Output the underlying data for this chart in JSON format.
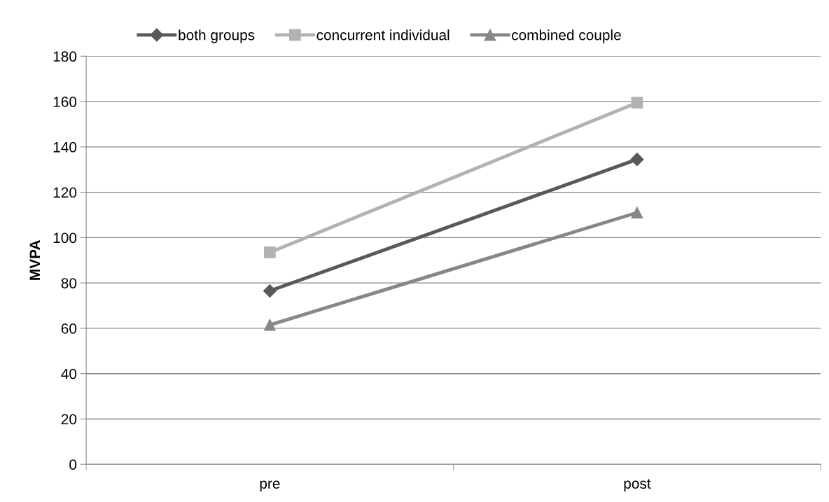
{
  "chart_data": {
    "type": "line",
    "ylabel": "MVPA",
    "categories": [
      "pre",
      "post"
    ],
    "series": [
      {
        "name": "both groups",
        "color": "#595959",
        "values": [
          76.5,
          134.5
        ],
        "marker": "diamond"
      },
      {
        "name": "concurrent individual",
        "color": "#b2b2b2",
        "values": [
          93.5,
          159.5
        ],
        "marker": "square"
      },
      {
        "name": "combined couple",
        "color": "#878787",
        "values": [
          61.5,
          111
        ],
        "marker": "triangle"
      }
    ],
    "ylim": [
      0,
      180
    ],
    "yticks": [
      0,
      20,
      40,
      60,
      80,
      100,
      120,
      140,
      160,
      180
    ],
    "grid": "y",
    "legend": "top"
  }
}
